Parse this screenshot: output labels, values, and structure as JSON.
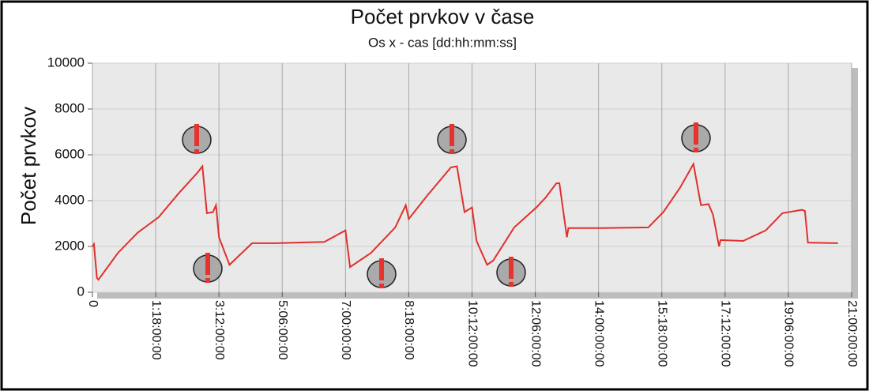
{
  "chart_data": {
    "type": "line",
    "title": "Počet prvkov v čase",
    "subtitle": "Os x - cas [dd:hh:mm:ss]",
    "y_label": "Počet prvkov",
    "x": [
      0,
      1,
      3,
      4,
      17,
      30,
      44,
      57,
      70,
      73,
      76,
      80,
      82,
      84,
      91,
      106,
      122,
      154,
      168,
      171,
      185,
      201,
      208,
      210,
      222,
      238,
      242,
      247,
      252,
      255,
      262,
      266,
      280,
      295,
      301,
      308,
      310,
      315,
      316,
      337,
      369,
      379,
      390,
      399,
      404,
      409,
      412,
      416,
      417,
      432,
      447,
      458,
      471,
      473,
      475,
      495
    ],
    "series": [
      {
        "name": "Počet prvkov",
        "color": "#e0302c",
        "values": [
          2000,
          2100,
          620,
          550,
          1720,
          2600,
          3280,
          4300,
          5240,
          5500,
          3450,
          3500,
          3800,
          2400,
          1200,
          2140,
          2140,
          2200,
          2700,
          1100,
          1720,
          2830,
          3800,
          3200,
          4200,
          5450,
          5500,
          3500,
          3700,
          2240,
          1200,
          1380,
          2830,
          3720,
          4140,
          4760,
          4760,
          2400,
          2800,
          2800,
          2830,
          3500,
          4550,
          5600,
          3800,
          3850,
          3380,
          2000,
          2280,
          2240,
          2700,
          3450,
          3600,
          3550,
          2170,
          2140
        ]
      }
    ],
    "xlim": [
      0,
      504
    ],
    "xticks": [
      0,
      {
        "value": 42,
        "label": "1:18:00:00"
      },
      {
        "value": 84,
        "label": "3:12:00:00"
      },
      {
        "value": 126,
        "label": "5:06:00:00"
      },
      {
        "value": 168,
        "label": "7:00:00:00"
      },
      {
        "value": 210,
        "label": "8:18:00:00"
      },
      {
        "value": 252,
        "label": "10:12:00:00"
      },
      {
        "value": 294,
        "label": "12:06:00:00"
      },
      {
        "value": 336,
        "label": "14:00:00:00"
      },
      {
        "value": 378,
        "label": "15:18:00:00"
      },
      {
        "value": 420,
        "label": "17:12:00:00"
      },
      {
        "value": 462,
        "label": "19:06:00:00"
      },
      {
        "value": 504,
        "label": "21:00:00:00"
      }
    ],
    "ylim": [
      0,
      10000
    ],
    "yticks": [
      0,
      2000,
      4000,
      6000,
      8000,
      10000
    ],
    "grid": true
  }
}
